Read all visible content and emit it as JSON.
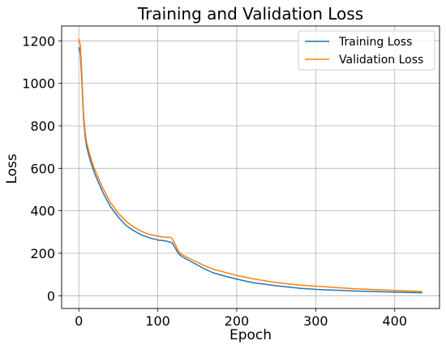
{
  "chart_data": {
    "type": "line",
    "title": "Training and Validation Loss",
    "xlabel": "Epoch",
    "ylabel": "Loss",
    "xlim": [
      -21.75,
      456.75
    ],
    "ylim": [
      -60,
      1270
    ],
    "xticks": [
      0,
      100,
      200,
      300,
      400
    ],
    "yticks": [
      0,
      200,
      400,
      600,
      800,
      1000,
      1200
    ],
    "grid": true,
    "legend_position": "top-right",
    "series": [
      {
        "name": "Training Loss",
        "color": "#1f77b4",
        "x": [
          0,
          2,
          4,
          6,
          8,
          10,
          15,
          20,
          30,
          40,
          50,
          60,
          70,
          80,
          90,
          100,
          110,
          118,
          122,
          126,
          130,
          140,
          150,
          160,
          170,
          180,
          200,
          220,
          250,
          280,
          300,
          350,
          400,
          435
        ],
        "y": [
          1170,
          1140,
          1000,
          840,
          750,
          700,
          630,
          575,
          490,
          420,
          370,
          330,
          305,
          285,
          272,
          262,
          258,
          250,
          225,
          200,
          185,
          165,
          145,
          125,
          108,
          97,
          78,
          62,
          47,
          35,
          30,
          22,
          17,
          14
        ]
      },
      {
        "name": "Validation Loss",
        "color": "#ff7f0e",
        "x": [
          0,
          2,
          4,
          6,
          8,
          10,
          15,
          20,
          30,
          40,
          50,
          60,
          70,
          80,
          90,
          100,
          110,
          116,
          118,
          122,
          126,
          130,
          140,
          150,
          160,
          170,
          180,
          200,
          220,
          250,
          280,
          300,
          350,
          400,
          435
        ],
        "y": [
          1210,
          1180,
          1030,
          860,
          770,
          720,
          650,
          595,
          510,
          440,
          388,
          350,
          322,
          302,
          288,
          280,
          275,
          275,
          270,
          243,
          210,
          195,
          175,
          158,
          140,
          125,
          115,
          95,
          80,
          62,
          50,
          45,
          33,
          25,
          20
        ]
      }
    ]
  }
}
